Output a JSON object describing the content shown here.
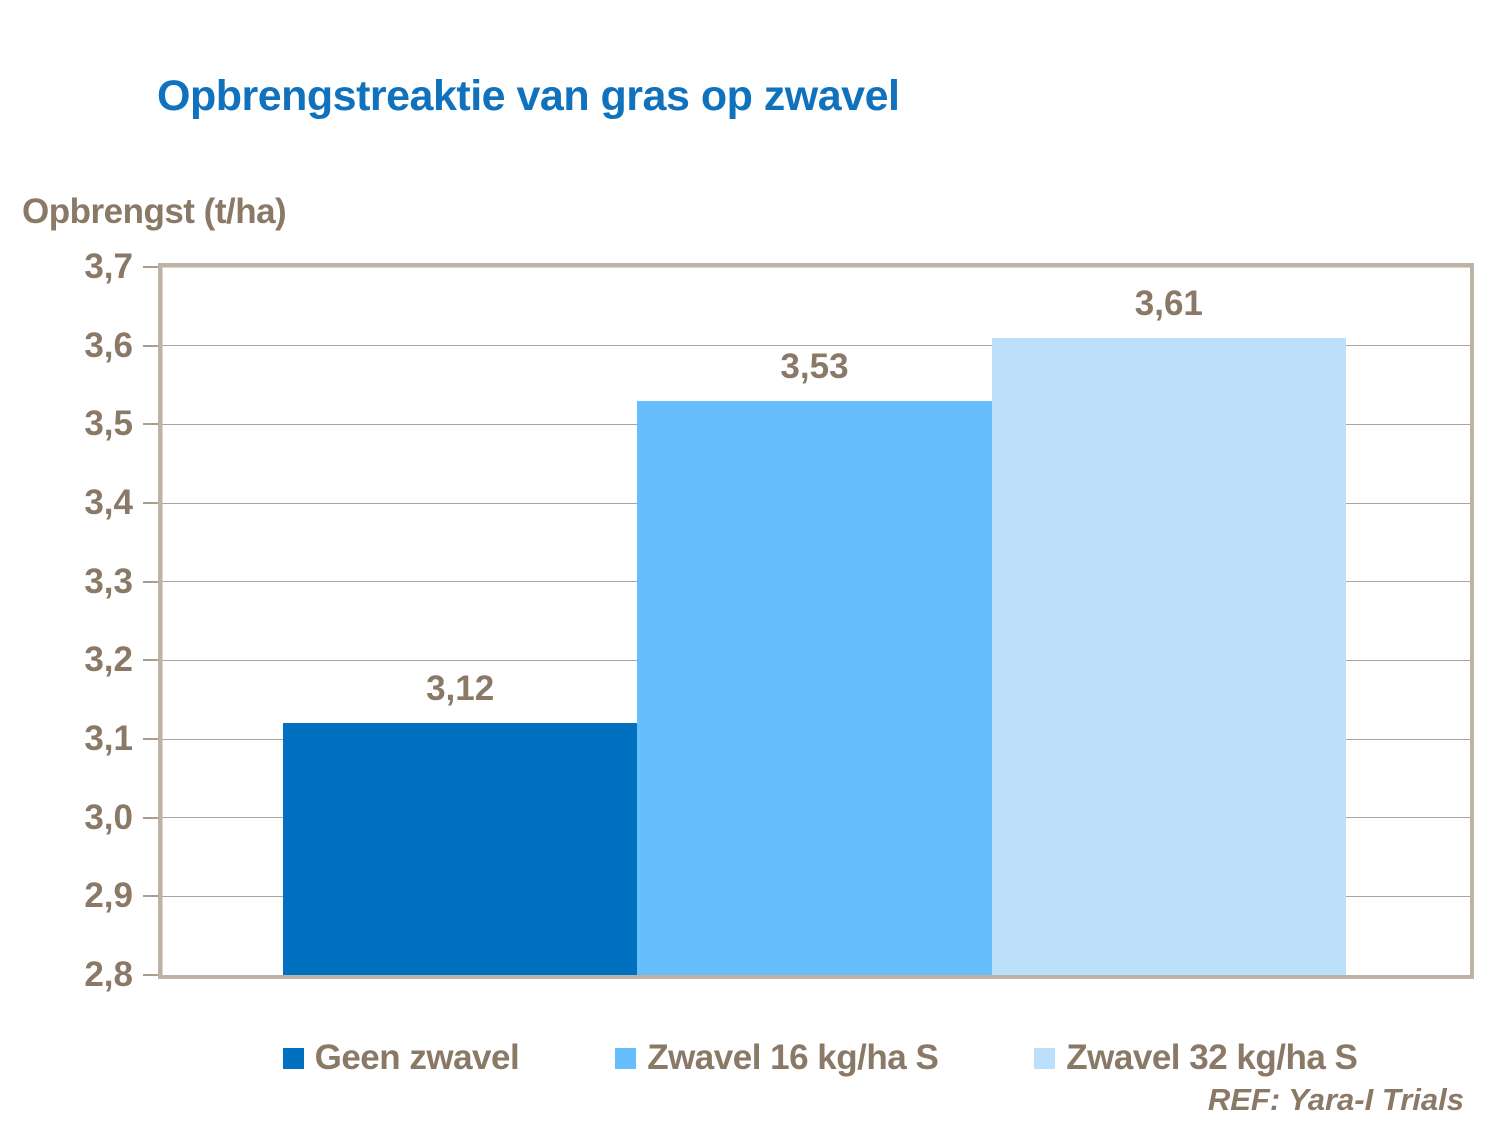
{
  "colors": {
    "title_blue": "#1072BD",
    "text_brown": "#8A7967",
    "frame_tan": "#BCB2A5",
    "gridline_tan": "#B0A595",
    "background": "#FFFFFF"
  },
  "chart_data": {
    "type": "bar",
    "title": "Opbrengstreaktie van gras op zwavel",
    "ylabel": "Opbrengst (t/ha)",
    "xlabel": "",
    "ylim": [
      2.8,
      3.7
    ],
    "ytick_step": 0.1,
    "ytick_labels": [
      "3,7",
      "3,6",
      "3,5",
      "3,4",
      "3,3",
      "3,2",
      "3,1",
      "3,0",
      "2,9",
      "2,8"
    ],
    "grid": true,
    "legend_position": "bottom",
    "decimal_separator": ",",
    "series": [
      {
        "name": "Geen zwavel",
        "value": 3.12,
        "label": "3,12",
        "color": "#0070C0"
      },
      {
        "name": "Zwavel 16 kg/ha S",
        "value": 3.53,
        "label": "3,53",
        "color": "#66BEFD"
      },
      {
        "name": "Zwavel 32 kg/ha S",
        "value": 3.61,
        "label": "3,61",
        "color": "#BCDFFC"
      }
    ],
    "footnote": "REF: Yara-I Trials"
  }
}
